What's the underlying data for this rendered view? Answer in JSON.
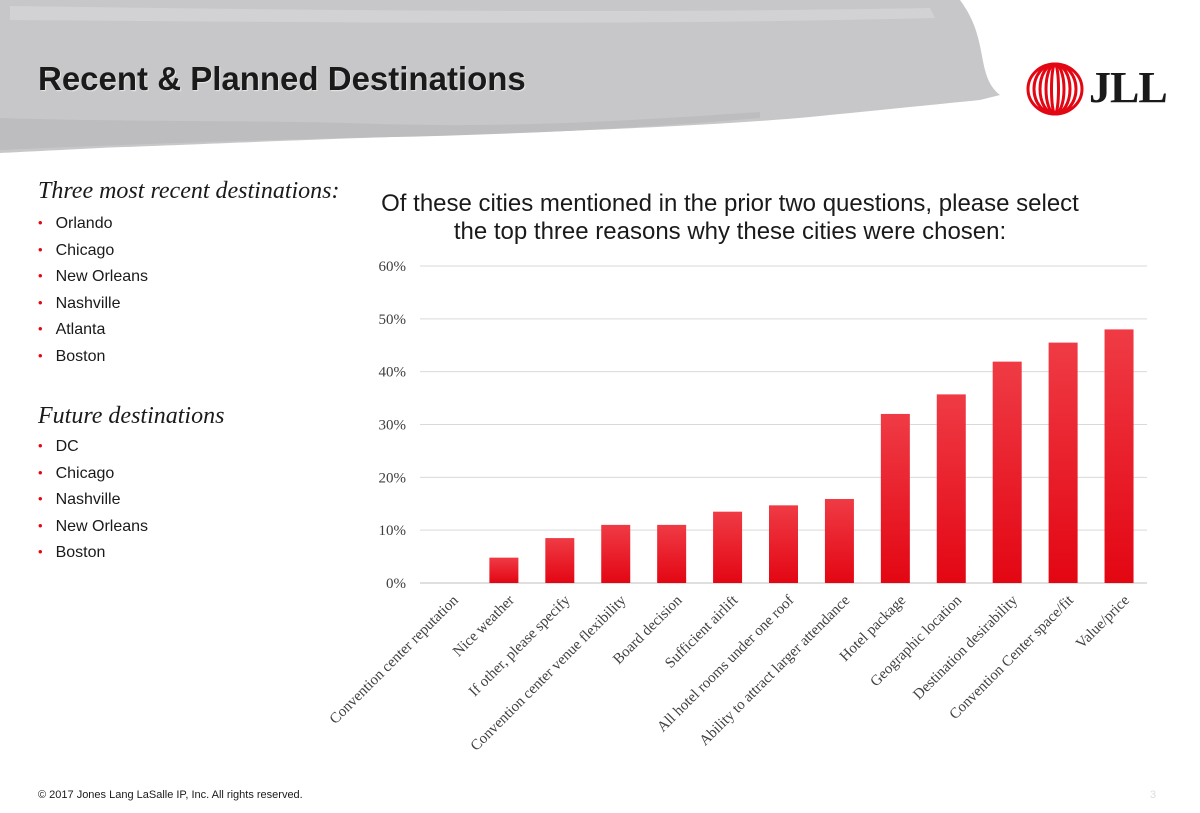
{
  "header": {
    "title": "Recent & Planned Destinations"
  },
  "logo": {
    "text": "JLL",
    "color": "#e30613"
  },
  "recent": {
    "heading": "Three most recent destinations:",
    "items": [
      "Orlando",
      "Chicago",
      "New Orleans",
      "Nashville",
      "Atlanta",
      "Boston"
    ]
  },
  "future": {
    "heading": "Future destinations",
    "items": [
      "DC",
      "Chicago",
      "Nashville",
      "New Orleans",
      "Boston"
    ]
  },
  "question": "Of these cities mentioned in the prior two questions, please select the top three reasons why these cities were chosen:",
  "chart_data": {
    "type": "bar",
    "title": "",
    "xlabel": "",
    "ylabel": "",
    "ylim": [
      0,
      0.6
    ],
    "yticks": [
      "0%",
      "10%",
      "20%",
      "30%",
      "40%",
      "50%",
      "60%"
    ],
    "grid": true,
    "bar_color": "#e30613",
    "categories": [
      "Convention center reputation",
      "Nice weather",
      "If other, please specify",
      "Convention center venue flexibility",
      "Board decision",
      "Sufficient airlift",
      "All hotel rooms under one roof",
      "Ability to attract larger attendance",
      "Hotel package",
      "Geographic location",
      "Destination desirability",
      "Convention Center space/fit",
      "Value/price"
    ],
    "values": [
      0,
      0.048,
      0.085,
      0.11,
      0.11,
      0.135,
      0.147,
      0.159,
      0.32,
      0.357,
      0.419,
      0.455,
      0.48
    ]
  },
  "footer": {
    "copyright": "© 2017 Jones Lang LaSalle IP, Inc. All rights reserved.",
    "page": "3"
  }
}
